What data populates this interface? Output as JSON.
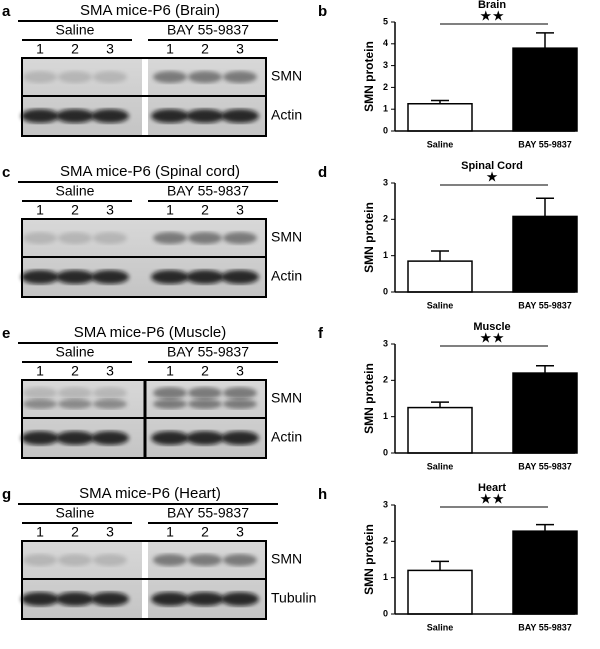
{
  "blots": [
    {
      "panel": "a",
      "title": "SMA mice-P6 (Brain)",
      "groups": [
        "Saline",
        "BAY 55-9837"
      ],
      "lanes": [
        "1",
        "2",
        "3",
        "1",
        "2",
        "3"
      ],
      "bands": [
        "SMN",
        "Actin"
      ]
    },
    {
      "panel": "c",
      "title": "SMA mice-P6 (Spinal cord)",
      "groups": [
        "Saline",
        "BAY 55-9837"
      ],
      "lanes": [
        "1",
        "2",
        "3",
        "1",
        "2",
        "3"
      ],
      "bands": [
        "SMN",
        "Actin"
      ]
    },
    {
      "panel": "e",
      "title": "SMA mice-P6 (Muscle)",
      "groups": [
        "Saline",
        "BAY 55-9837"
      ],
      "lanes": [
        "1",
        "2",
        "3",
        "1",
        "2",
        "3"
      ],
      "bands": [
        "SMN",
        "Actin"
      ]
    },
    {
      "panel": "g",
      "title": "SMA mice-P6 (Heart)",
      "groups": [
        "Saline",
        "BAY 55-9837"
      ],
      "lanes": [
        "1",
        "2",
        "3",
        "1",
        "2",
        "3"
      ],
      "bands": [
        "SMN",
        "Tubulin"
      ]
    }
  ],
  "chart_data": [
    {
      "type": "bar",
      "panel": "b",
      "title": "Brain",
      "annotation": "★★",
      "ylabel": "SMN protein",
      "categories": [
        "Saline",
        "BAY 55-9837"
      ],
      "values": [
        1.25,
        3.8
      ],
      "errors": [
        0.15,
        0.7
      ],
      "colors": [
        "#ffffff",
        "#000000"
      ],
      "ylim": [
        0,
        5
      ],
      "yticks": [
        0,
        1,
        2,
        3,
        4,
        5
      ]
    },
    {
      "type": "bar",
      "panel": "d",
      "title": "Spinal Cord",
      "annotation": "★",
      "ylabel": "SMN protein",
      "categories": [
        "Saline",
        "BAY 55-9837"
      ],
      "values": [
        0.85,
        2.08
      ],
      "errors": [
        0.28,
        0.5
      ],
      "colors": [
        "#ffffff",
        "#000000"
      ],
      "ylim": [
        0,
        3
      ],
      "yticks": [
        0,
        1,
        2,
        3
      ]
    },
    {
      "type": "bar",
      "panel": "f",
      "title": "Muscle",
      "annotation": "★★",
      "ylabel": "SMN protein",
      "categories": [
        "Saline",
        "BAY 55-9837"
      ],
      "values": [
        1.25,
        2.2
      ],
      "errors": [
        0.15,
        0.2
      ],
      "colors": [
        "#ffffff",
        "#000000"
      ],
      "ylim": [
        0,
        3
      ],
      "yticks": [
        0,
        1,
        2,
        3
      ]
    },
    {
      "type": "bar",
      "panel": "h",
      "title": "Heart",
      "annotation": "★★",
      "ylabel": "SMN protein",
      "categories": [
        "Saline",
        "BAY 55-9837"
      ],
      "values": [
        1.2,
        2.28
      ],
      "errors": [
        0.25,
        0.18
      ],
      "colors": [
        "#ffffff",
        "#000000"
      ],
      "ylim": [
        0,
        3
      ],
      "yticks": [
        0,
        1,
        2,
        3
      ]
    }
  ]
}
